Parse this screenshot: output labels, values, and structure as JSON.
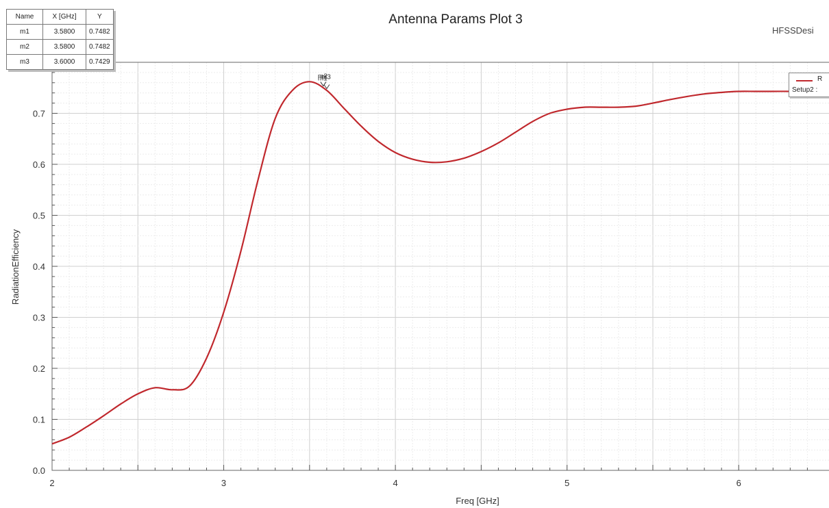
{
  "chart_data": {
    "type": "line",
    "title": "Antenna Params Plot 3",
    "app_label": "HFSSDesi",
    "xlabel": "Freq [GHz]",
    "ylabel": "RadiationEfficiency",
    "xlim": [
      2,
      6.55
    ],
    "ylim": [
      0,
      0.8
    ],
    "x_ticks": [
      "2",
      "3",
      "4",
      "5",
      "6"
    ],
    "y_ticks": [
      "0.0",
      "0.1",
      "0.2",
      "0.3",
      "0.4",
      "0.5",
      "0.6",
      "0.7"
    ],
    "grid": true,
    "series": [
      {
        "color": "#c0282d",
        "x": [
          2.0,
          2.1,
          2.2,
          2.3,
          2.4,
          2.5,
          2.6,
          2.7,
          2.8,
          2.9,
          3.0,
          3.1,
          3.2,
          3.3,
          3.4,
          3.5,
          3.6,
          3.7,
          3.8,
          3.9,
          4.0,
          4.1,
          4.2,
          4.3,
          4.4,
          4.5,
          4.6,
          4.7,
          4.8,
          4.9,
          5.0,
          5.1,
          5.2,
          5.3,
          5.4,
          5.5,
          5.6,
          5.7,
          5.8,
          5.9,
          6.0,
          6.1,
          6.2,
          6.3,
          6.4,
          6.5
        ],
        "values": [
          0.052,
          0.065,
          0.085,
          0.107,
          0.13,
          0.15,
          0.162,
          0.158,
          0.165,
          0.22,
          0.31,
          0.43,
          0.57,
          0.69,
          0.745,
          0.762,
          0.745,
          0.71,
          0.675,
          0.645,
          0.623,
          0.61,
          0.604,
          0.605,
          0.612,
          0.625,
          0.642,
          0.663,
          0.684,
          0.7,
          0.708,
          0.712,
          0.712,
          0.712,
          0.714,
          0.72,
          0.727,
          0.733,
          0.738,
          0.741,
          0.743,
          0.743,
          0.743,
          0.743,
          0.742,
          0.742
        ]
      }
    ],
    "legend": {
      "position": "top-right",
      "name": "R",
      "setup": "Setup2 :"
    },
    "markers": [
      {
        "name": "m1",
        "x": 3.58,
        "y": 0.7482
      },
      {
        "name": "m2",
        "x": 3.58,
        "y": 0.7482
      },
      {
        "name": "m3",
        "x": 3.6,
        "y": 0.7429
      }
    ],
    "marker_table": {
      "headers": [
        "Name",
        "X [GHz]",
        "Y"
      ],
      "rows": [
        [
          "m1",
          "3.5800",
          "0.7482"
        ],
        [
          "m2",
          "3.5800",
          "0.7482"
        ],
        [
          "m3",
          "3.6000",
          "0.7429"
        ]
      ]
    }
  }
}
